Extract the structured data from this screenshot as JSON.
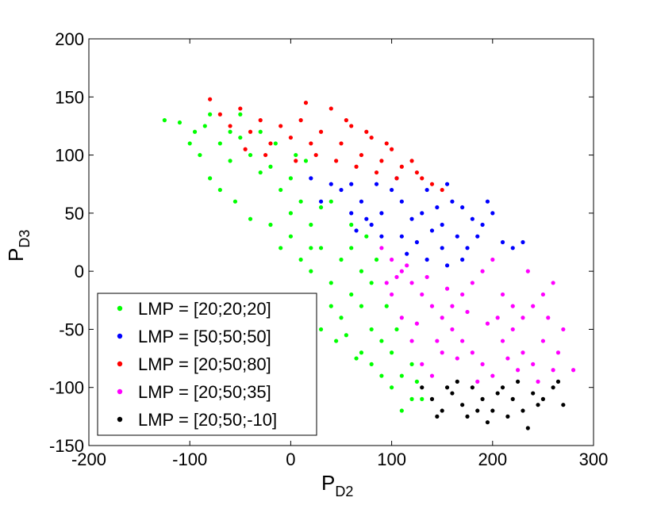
{
  "chart_data": {
    "type": "scatter",
    "xlabel": "P",
    "xlabel_sub": "D2",
    "ylabel": "P",
    "ylabel_sub": "D3",
    "xlim": [
      -200,
      300
    ],
    "ylim": [
      -150,
      200
    ],
    "xticks": [
      -200,
      -100,
      0,
      100,
      200,
      300
    ],
    "yticks": [
      200,
      150,
      100,
      50,
      0,
      -50,
      -100,
      -150
    ],
    "legend_position": "bottom-left",
    "grid": false,
    "series": [
      {
        "name": "LMP = [20;20;20]",
        "color": "#00ff00",
        "points": [
          [
            -125,
            130
          ],
          [
            -110,
            128
          ],
          [
            -95,
            120
          ],
          [
            -80,
            135
          ],
          [
            -70,
            110
          ],
          [
            -60,
            95
          ],
          [
            -50,
            115
          ],
          [
            -40,
            100
          ],
          [
            -30,
            85
          ],
          [
            -20,
            90
          ],
          [
            -10,
            70
          ],
          [
            0,
            80
          ],
          [
            10,
            60
          ],
          [
            -55,
            60
          ],
          [
            -40,
            45
          ],
          [
            -20,
            40
          ],
          [
            0,
            30
          ],
          [
            20,
            40
          ],
          [
            30,
            55
          ],
          [
            -10,
            20
          ],
          [
            10,
            10
          ],
          [
            20,
            0
          ],
          [
            40,
            -10
          ],
          [
            30,
            20
          ],
          [
            50,
            10
          ],
          [
            60,
            -20
          ],
          [
            70,
            -30
          ],
          [
            50,
            -40
          ],
          [
            40,
            -30
          ],
          [
            80,
            -50
          ],
          [
            90,
            -60
          ],
          [
            70,
            -70
          ],
          [
            100,
            -70
          ],
          [
            110,
            -90
          ],
          [
            120,
            -110
          ],
          [
            90,
            -90
          ],
          [
            100,
            -100
          ],
          [
            110,
            -120
          ],
          [
            130,
            -110
          ],
          [
            60,
            20
          ],
          [
            70,
            0
          ],
          [
            80,
            -10
          ],
          [
            -80,
            80
          ],
          [
            -70,
            70
          ],
          [
            -90,
            100
          ],
          [
            -60,
            120
          ],
          [
            -50,
            135
          ],
          [
            0,
            50
          ],
          [
            20,
            20
          ],
          [
            40,
            60
          ],
          [
            60,
            40
          ],
          [
            75,
            30
          ],
          [
            85,
            10
          ],
          [
            95,
            -30
          ],
          [
            105,
            -50
          ],
          [
            120,
            -80
          ],
          [
            125,
            -95
          ],
          [
            -30,
            120
          ],
          [
            -15,
            110
          ],
          [
            5,
            100
          ],
          [
            15,
            95
          ],
          [
            -100,
            110
          ],
          [
            -85,
            125
          ],
          [
            30,
            -50
          ],
          [
            45,
            -60
          ],
          [
            55,
            -55
          ],
          [
            65,
            -75
          ],
          [
            80,
            -80
          ]
        ]
      },
      {
        "name": "LMP = [50;50;50]",
        "color": "#0000ff",
        "points": [
          [
            20,
            80
          ],
          [
            40,
            75
          ],
          [
            30,
            60
          ],
          [
            50,
            70
          ],
          [
            60,
            50
          ],
          [
            70,
            60
          ],
          [
            80,
            40
          ],
          [
            90,
            50
          ],
          [
            100,
            70
          ],
          [
            110,
            60
          ],
          [
            120,
            45
          ],
          [
            130,
            50
          ],
          [
            140,
            35
          ],
          [
            150,
            40
          ],
          [
            160,
            60
          ],
          [
            170,
            55
          ],
          [
            180,
            45
          ],
          [
            190,
            40
          ],
          [
            200,
            50
          ],
          [
            210,
            25
          ],
          [
            220,
            20
          ],
          [
            90,
            30
          ],
          [
            110,
            30
          ],
          [
            125,
            25
          ],
          [
            150,
            20
          ],
          [
            175,
            20
          ],
          [
            60,
            75
          ],
          [
            85,
            75
          ],
          [
            105,
            80
          ],
          [
            135,
            70
          ],
          [
            155,
            75
          ],
          [
            145,
            55
          ],
          [
            195,
            60
          ],
          [
            185,
            30
          ],
          [
            165,
            30
          ],
          [
            75,
            45
          ],
          [
            65,
            35
          ],
          [
            115,
            15
          ],
          [
            135,
            10
          ],
          [
            155,
            5
          ],
          [
            170,
            10
          ],
          [
            230,
            25
          ]
        ]
      },
      {
        "name": "LMP = [20;50;80]",
        "color": "#ff0000",
        "points": [
          [
            -80,
            148
          ],
          [
            -70,
            135
          ],
          [
            -60,
            125
          ],
          [
            -50,
            140
          ],
          [
            -40,
            120
          ],
          [
            -30,
            130
          ],
          [
            -20,
            110
          ],
          [
            -10,
            125
          ],
          [
            0,
            115
          ],
          [
            10,
            130
          ],
          [
            20,
            110
          ],
          [
            30,
            120
          ],
          [
            40,
            140
          ],
          [
            50,
            110
          ],
          [
            60,
            125
          ],
          [
            70,
            100
          ],
          [
            80,
            115
          ],
          [
            90,
            95
          ],
          [
            100,
            105
          ],
          [
            110,
            90
          ],
          [
            120,
            95
          ],
          [
            130,
            80
          ],
          [
            140,
            75
          ],
          [
            150,
            70
          ],
          [
            -45,
            105
          ],
          [
            -25,
            100
          ],
          [
            5,
            95
          ],
          [
            25,
            100
          ],
          [
            45,
            95
          ],
          [
            65,
            90
          ],
          [
            85,
            85
          ],
          [
            105,
            80
          ],
          [
            125,
            85
          ],
          [
            15,
            145
          ],
          [
            55,
            130
          ],
          [
            75,
            120
          ],
          [
            95,
            110
          ]
        ]
      },
      {
        "name": "LMP = [20;50;35]",
        "color": "#ff00ff",
        "points": [
          [
            90,
            20
          ],
          [
            100,
            10
          ],
          [
            110,
            0
          ],
          [
            120,
            -10
          ],
          [
            130,
            -20
          ],
          [
            140,
            -30
          ],
          [
            150,
            -40
          ],
          [
            160,
            -50
          ],
          [
            170,
            -60
          ],
          [
            180,
            -70
          ],
          [
            190,
            -80
          ],
          [
            200,
            -90
          ],
          [
            210,
            -60
          ],
          [
            220,
            -50
          ],
          [
            230,
            -40
          ],
          [
            240,
            -30
          ],
          [
            250,
            -20
          ],
          [
            260,
            -10
          ],
          [
            270,
            -50
          ],
          [
            280,
            -85
          ],
          [
            100,
            -20
          ],
          [
            110,
            -40
          ],
          [
            120,
            -60
          ],
          [
            130,
            -80
          ],
          [
            140,
            -90
          ],
          [
            150,
            -70
          ],
          [
            160,
            -30
          ],
          [
            170,
            -20
          ],
          [
            180,
            -10
          ],
          [
            190,
            0
          ],
          [
            200,
            10
          ],
          [
            210,
            -20
          ],
          [
            220,
            -30
          ],
          [
            230,
            -70
          ],
          [
            240,
            -80
          ],
          [
            250,
            -60
          ],
          [
            260,
            -85
          ],
          [
            115,
            5
          ],
          [
            135,
            -5
          ],
          [
            155,
            -15
          ],
          [
            175,
            -35
          ],
          [
            195,
            -45
          ],
          [
            215,
            -75
          ],
          [
            225,
            -85
          ],
          [
            245,
            -95
          ],
          [
            145,
            -60
          ],
          [
            165,
            -75
          ],
          [
            185,
            -95
          ],
          [
            205,
            -40
          ],
          [
            235,
            0
          ],
          [
            255,
            -40
          ],
          [
            265,
            -70
          ],
          [
            125,
            -45
          ],
          [
            105,
            -5
          ],
          [
            95,
            -10
          ]
        ]
      },
      {
        "name": "LMP = [20;50;-10]",
        "color": "#000000",
        "points": [
          [
            130,
            -100
          ],
          [
            140,
            -110
          ],
          [
            150,
            -120
          ],
          [
            160,
            -105
          ],
          [
            170,
            -115
          ],
          [
            180,
            -100
          ],
          [
            190,
            -110
          ],
          [
            200,
            -120
          ],
          [
            210,
            -100
          ],
          [
            220,
            -110
          ],
          [
            230,
            -120
          ],
          [
            240,
            -105
          ],
          [
            250,
            -110
          ],
          [
            260,
            -100
          ],
          [
            270,
            -115
          ],
          [
            145,
            -125
          ],
          [
            165,
            -95
          ],
          [
            185,
            -120
          ],
          [
            205,
            -105
          ],
          [
            225,
            -95
          ],
          [
            245,
            -115
          ],
          [
            265,
            -95
          ],
          [
            155,
            -100
          ],
          [
            175,
            -125
          ],
          [
            195,
            -130
          ],
          [
            215,
            -125
          ],
          [
            235,
            -135
          ]
        ]
      }
    ]
  }
}
